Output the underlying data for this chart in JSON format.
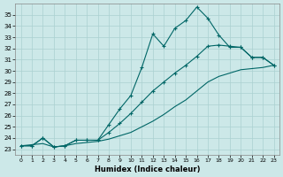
{
  "xlabel": "Humidex (Indice chaleur)",
  "bg_color": "#cce8e8",
  "grid_color": "#aad0d0",
  "line_color": "#006666",
  "xlim": [
    -0.5,
    23.5
  ],
  "ylim": [
    22.5,
    36.0
  ],
  "xticks": [
    0,
    1,
    2,
    3,
    4,
    5,
    6,
    7,
    8,
    9,
    10,
    11,
    12,
    13,
    14,
    15,
    16,
    17,
    18,
    19,
    20,
    21,
    22,
    23
  ],
  "yticks": [
    23,
    24,
    25,
    26,
    27,
    28,
    29,
    30,
    31,
    32,
    33,
    34,
    35
  ],
  "series_jagged": [
    23.3,
    23.3,
    24.0,
    23.2,
    23.3,
    23.8,
    23.8,
    23.8,
    25.2,
    26.6,
    27.8,
    30.3,
    33.3,
    32.2,
    33.8,
    34.5,
    35.7,
    34.7,
    33.2,
    32.1,
    32.1,
    31.2,
    31.2,
    30.5
  ],
  "series_mid": [
    23.3,
    23.3,
    24.0,
    23.2,
    23.3,
    23.8,
    23.8,
    23.8,
    24.5,
    25.3,
    26.2,
    27.2,
    28.2,
    29.0,
    29.8,
    30.5,
    31.3,
    32.2,
    32.3,
    32.2,
    32.1,
    31.2,
    31.2,
    30.5
  ],
  "series_low": [
    23.3,
    23.4,
    23.5,
    23.2,
    23.3,
    23.5,
    23.6,
    23.7,
    23.9,
    24.2,
    24.5,
    25.0,
    25.5,
    26.1,
    26.8,
    27.4,
    28.2,
    29.0,
    29.5,
    29.8,
    30.1,
    30.2,
    30.3,
    30.5
  ]
}
